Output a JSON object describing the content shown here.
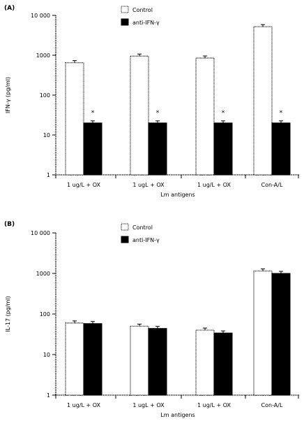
{
  "chart_data": [
    {
      "panel_label": "(A)",
      "type": "bar",
      "scale": "log",
      "ylim": [
        1,
        10000
      ],
      "ytick_labels": [
        "1",
        "10",
        "100",
        "1000",
        "10 000"
      ],
      "ytick_values": [
        1,
        10,
        100,
        1000,
        10000
      ],
      "ylabel": "IFN-γ (pg/ml)",
      "xlabel": "Lm antigens",
      "categories": [
        "1 ug/L + OX",
        "1 ugL + OX",
        "1 ug/L + OX",
        "Con-A/L"
      ],
      "series": [
        {
          "name": "Control",
          "values": [
            650,
            950,
            850,
            5200
          ],
          "color": "#ffffff",
          "pattern": "dotted-outline"
        },
        {
          "name": "anti-IFN-γ",
          "values": [
            20,
            20,
            20,
            20
          ],
          "color": "#000000",
          "pattern": "solid"
        }
      ],
      "annotations": [
        "*",
        "*",
        "*",
        "*"
      ],
      "legend_position": "top-center"
    },
    {
      "panel_label": "(B)",
      "type": "bar",
      "scale": "log",
      "ylim": [
        1,
        10000
      ],
      "ytick_labels": [
        "1",
        "10",
        "100",
        "1000",
        "10 000"
      ],
      "ytick_values": [
        1,
        10,
        100,
        1000,
        10000
      ],
      "ylabel": "IL-17 (pg/ml)",
      "xlabel": "Lm antigens",
      "categories": [
        "1 ug/L + OX",
        "1 ugL + OX",
        "1 ug/L + OX",
        "Con-A/L"
      ],
      "series": [
        {
          "name": "Control",
          "values": [
            60,
            50,
            40,
            1150
          ],
          "color": "#ffffff",
          "pattern": "dotted-outline"
        },
        {
          "name": "anti-IFN-γ",
          "values": [
            58,
            44,
            34,
            1000
          ],
          "color": "#000000",
          "pattern": "solid"
        }
      ],
      "legend_position": "top-center"
    }
  ]
}
